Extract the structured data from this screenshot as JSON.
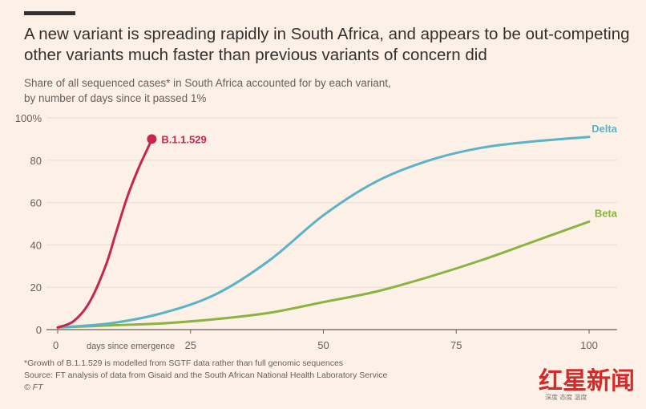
{
  "header": {
    "title": "A new variant is spreading rapidly in South Africa, and appears to be out-competing other variants much faster than previous variants of concern did",
    "subtitle_line1": "Share of all sequenced cases* in South Africa accounted for by each variant,",
    "subtitle_line2": "by number of days since it passed 1%"
  },
  "footer": {
    "note": "*Growth of B.1.1.529 is modelled from SGTF data rather than full genomic sequences",
    "source": "Source: FT analysis of data from Gisaid and the South African National Health Laboratory Service",
    "copyright": "© FT"
  },
  "watermark": {
    "text": "红星新闻",
    "sub": "深度 态度 温度"
  },
  "chart_data": {
    "type": "line",
    "title": "A new variant is spreading rapidly in South Africa, and appears to be out-competing other variants much faster than previous variants of concern did",
    "xlabel": "days since emergence",
    "ylabel": "",
    "xlim": [
      0,
      100
    ],
    "ylim": [
      0,
      100
    ],
    "xticks": [
      "0",
      "25",
      "50",
      "75",
      "100"
    ],
    "yticks": [
      "0",
      "20",
      "40",
      "60",
      "80",
      "100%"
    ],
    "grid": true,
    "series": [
      {
        "name": "B.1.1.529",
        "color": "#c8274b",
        "x": [
          0,
          3,
          6,
          9,
          11,
          13,
          15,
          17,
          17.7
        ],
        "y": [
          1,
          4,
          13,
          30,
          46,
          62,
          75,
          86,
          90
        ]
      },
      {
        "name": "Delta",
        "color": "#5ab3c6",
        "x": [
          0,
          10,
          20,
          30,
          40,
          50,
          60,
          70,
          80,
          90,
          100
        ],
        "y": [
          1,
          3,
          8,
          17,
          33,
          54,
          70,
          80,
          86,
          89,
          91
        ]
      },
      {
        "name": "Beta",
        "color": "#8cb23f",
        "x": [
          0,
          10,
          20,
          30,
          40,
          50,
          60,
          70,
          80,
          90,
          100
        ],
        "y": [
          1,
          2,
          3,
          5,
          8,
          13,
          18,
          25,
          33,
          42,
          51
        ]
      }
    ]
  }
}
